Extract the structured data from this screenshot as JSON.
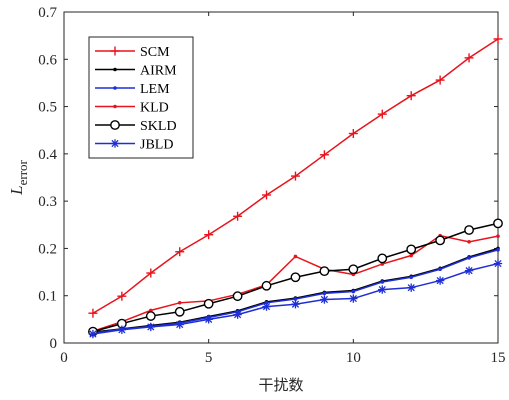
{
  "chart_data": {
    "type": "line",
    "xlabel": "干扰数",
    "ylabel_main": "L",
    "ylabel_sub": "error",
    "xlim": [
      0,
      15
    ],
    "ylim": [
      0,
      0.7
    ],
    "xticks": [
      0,
      5,
      10,
      15
    ],
    "yticks": [
      0,
      0.1,
      0.2,
      0.3,
      0.4,
      0.5,
      0.6,
      0.7
    ],
    "grid": false,
    "legend_position": "top-left",
    "x": [
      1,
      2,
      3,
      4,
      5,
      6,
      7,
      8,
      9,
      10,
      11,
      12,
      13,
      14,
      15
    ],
    "series": [
      {
        "name": "SCM",
        "color": "#e8141c",
        "marker": "plus",
        "values": [
          0.063,
          0.099,
          0.148,
          0.193,
          0.229,
          0.268,
          0.313,
          0.353,
          0.398,
          0.443,
          0.484,
          0.523,
          0.556,
          0.603,
          0.643
        ]
      },
      {
        "name": "AIRM",
        "color": "#000000",
        "marker": "dot",
        "values": [
          0.023,
          0.03,
          0.037,
          0.044,
          0.056,
          0.068,
          0.087,
          0.095,
          0.107,
          0.111,
          0.131,
          0.141,
          0.158,
          0.182,
          0.2
        ]
      },
      {
        "name": "LEM",
        "color": "#1f2fd6",
        "marker": "dot",
        "values": [
          0.021,
          0.029,
          0.035,
          0.042,
          0.054,
          0.066,
          0.085,
          0.093,
          0.105,
          0.109,
          0.129,
          0.139,
          0.156,
          0.18,
          0.197
        ]
      },
      {
        "name": "KLD",
        "color": "#e8141c",
        "marker": "dot",
        "values": [
          0.025,
          0.045,
          0.069,
          0.085,
          0.089,
          0.103,
          0.123,
          0.183,
          0.156,
          0.145,
          0.167,
          0.185,
          0.227,
          0.214,
          0.226
        ]
      },
      {
        "name": "SKLD",
        "color": "#000000",
        "marker": "circle",
        "values": [
          0.024,
          0.041,
          0.057,
          0.066,
          0.083,
          0.099,
          0.121,
          0.139,
          0.152,
          0.156,
          0.179,
          0.198,
          0.217,
          0.239,
          0.253
        ]
      },
      {
        "name": "JBLD",
        "color": "#1f2fd6",
        "marker": "asterisk",
        "values": [
          0.019,
          0.028,
          0.034,
          0.039,
          0.05,
          0.06,
          0.077,
          0.082,
          0.092,
          0.094,
          0.113,
          0.117,
          0.132,
          0.153,
          0.168
        ]
      }
    ]
  }
}
